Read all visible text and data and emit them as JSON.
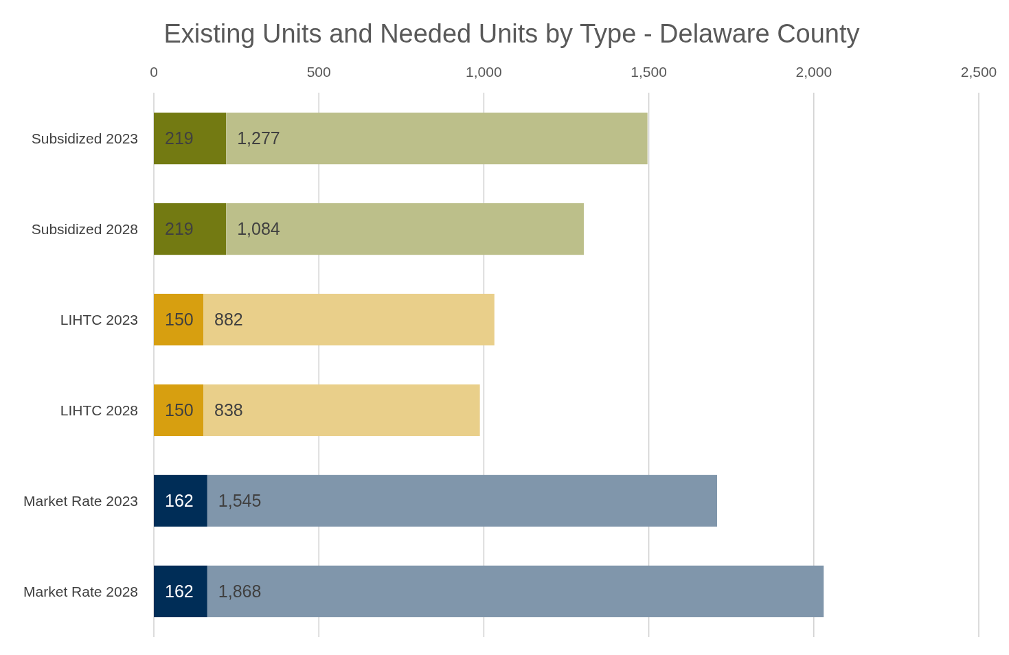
{
  "chart_data": {
    "type": "bar",
    "title": "Existing Units and Needed Units by Type - Delaware County",
    "orientation": "horizontal",
    "stacked": true,
    "categories": [
      "Subsidized 2023",
      "Subsidized 2028",
      "LIHTC 2023",
      "LIHTC 2028",
      "Market Rate 2023",
      "Market Rate 2028"
    ],
    "series": [
      {
        "colors": [
          "#737a12",
          "#737a12",
          "#d79f10",
          "#d79f10",
          "#002d57",
          "#002d57"
        ],
        "values": [
          219,
          219,
          150,
          150,
          162,
          162
        ],
        "value_labels": [
          "219",
          "219",
          "150",
          "150",
          "162",
          "162"
        ]
      },
      {
        "colors": [
          "#bcbf8a",
          "#bcbf8a",
          "#e9cf8a",
          "#e9cf8a",
          "#8096ab",
          "#8096ab"
        ],
        "values": [
          1277,
          1084,
          882,
          838,
          1545,
          1868
        ],
        "value_labels": [
          "1,277",
          "1,084",
          "882",
          "838",
          "1,545",
          "1,868"
        ]
      }
    ],
    "xlim": [
      0,
      2500
    ],
    "xticks": [
      0,
      500,
      {
        "value": 1000,
        "label": "1,000"
      },
      {
        "value": 1500,
        "label": "1,500"
      },
      {
        "value": 2000,
        "label": "2,000"
      },
      {
        "value": 2500,
        "label": "2,500"
      }
    ],
    "grid": "x"
  }
}
